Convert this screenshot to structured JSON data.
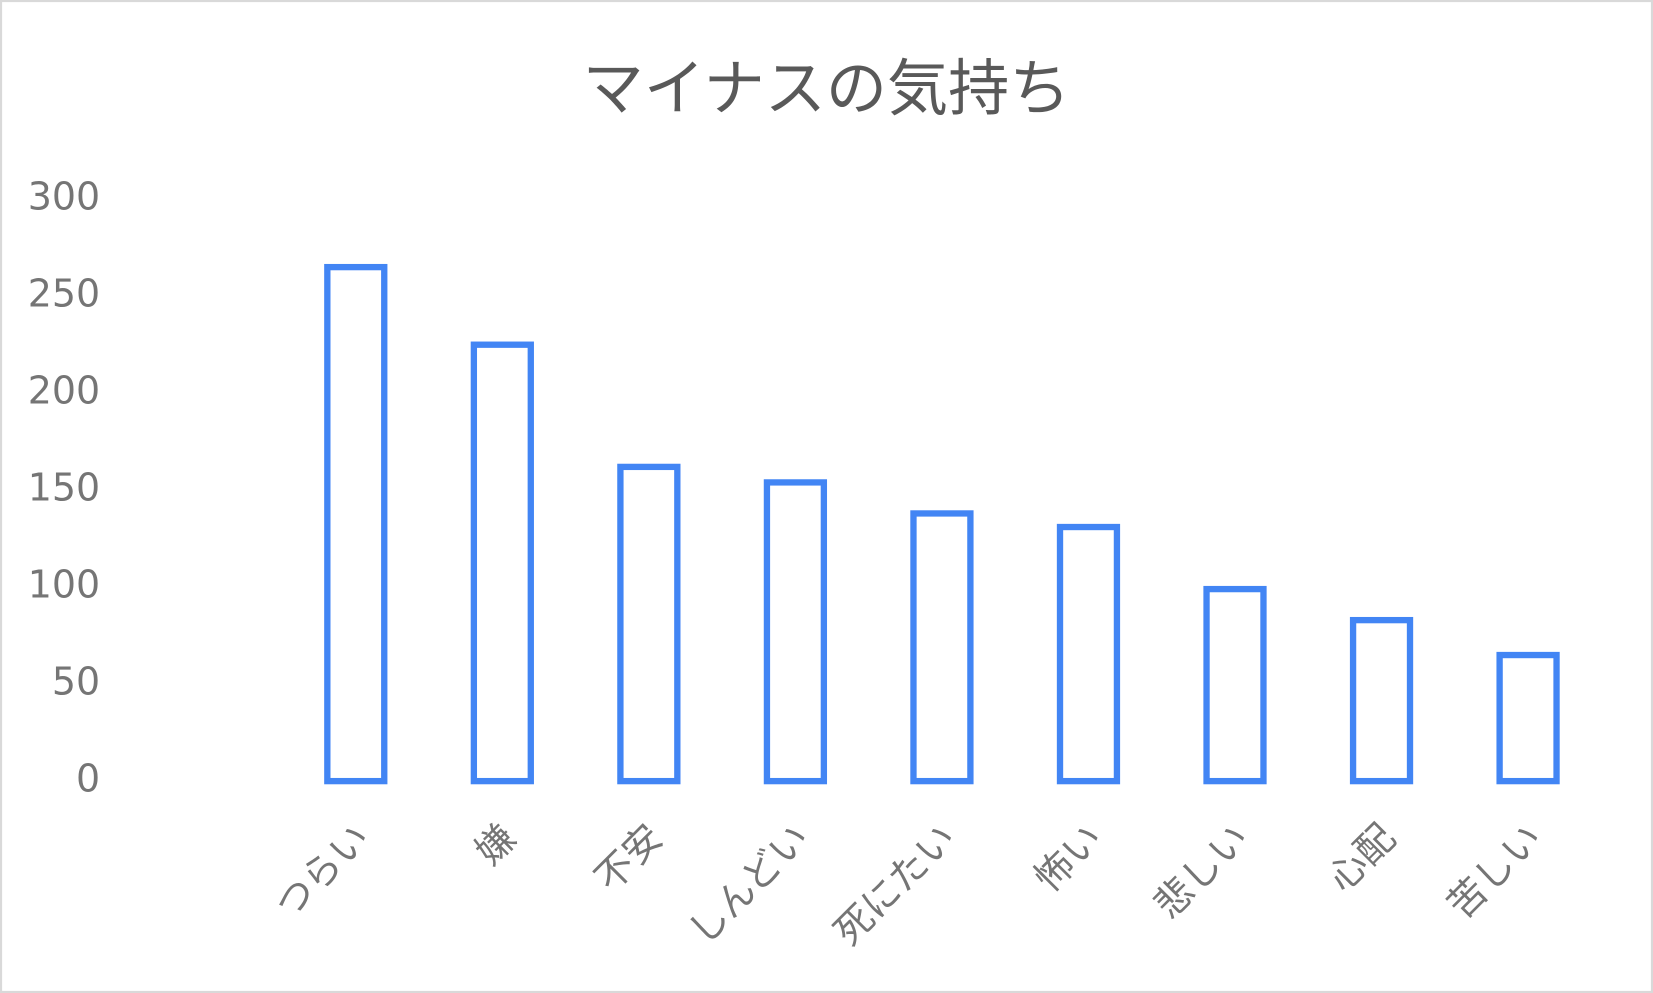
{
  "chart_data": {
    "type": "bar",
    "title": "マイナスの気持ち",
    "categories": [
      "つらい",
      "嫌",
      "不安",
      "しんどい",
      "死にたい",
      "怖い",
      "悲しい",
      "心配",
      "苦しい"
    ],
    "values": [
      265,
      225,
      162,
      154,
      138,
      131,
      99,
      83,
      65
    ],
    "color": "#4285f4",
    "ylim": [
      0,
      300
    ],
    "yticks": [
      0,
      50,
      100,
      150,
      200,
      250,
      300
    ],
    "grid": false
  }
}
